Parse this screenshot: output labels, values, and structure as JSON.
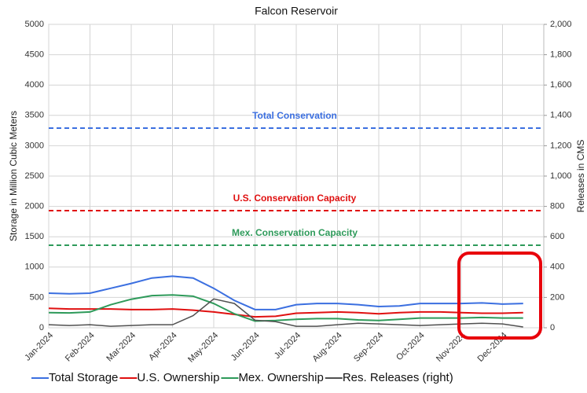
{
  "chart_data": {
    "type": "line",
    "title": "Falcon Reservoir",
    "y_label": "Storage in Million Cubic Meters",
    "y2_label": "Releases in CMS",
    "categories": [
      "Jan-2024",
      null,
      "Feb-2024",
      null,
      "Mar-2024",
      null,
      "Apr-2024",
      null,
      "May-2024",
      null,
      "Jun-2024",
      null,
      "Jul-2024",
      null,
      "Aug-2024",
      null,
      "Sep-2024",
      null,
      "Oct-2024",
      null,
      "Nov-2024",
      null,
      "Dec-2024",
      null
    ],
    "ylim": [
      0,
      5000
    ],
    "yticks": [
      0,
      500,
      1000,
      1500,
      2000,
      2500,
      3000,
      3500,
      4000,
      4500,
      5000
    ],
    "y2lim": [
      0,
      2000
    ],
    "y2ticks": [
      0,
      200,
      400,
      600,
      800,
      {
        "value": 1000,
        "label": "1,000"
      },
      {
        "value": 1200,
        "label": "1,200"
      },
      {
        "value": 1400,
        "label": "1,400"
      },
      {
        "value": 1600,
        "label": "1,600"
      },
      {
        "value": 1800,
        "label": "1,800"
      },
      {
        "value": 2000,
        "label": "2,000"
      }
    ],
    "grid": true,
    "legend": "bottom",
    "reference_lines": [
      {
        "label": "Total Conservation",
        "value": 3290,
        "color": "#3b6fe0"
      },
      {
        "label": "U.S. Conservation Capacity",
        "value": 1930,
        "color": "#e01010"
      },
      {
        "label": "Mex. Conservation Capacity",
        "value": 1360,
        "color": "#2e9a5a"
      }
    ],
    "series": [
      {
        "name": "Total Storage",
        "color": "#3b6fe0",
        "values": [
          570,
          560,
          570,
          650,
          730,
          820,
          850,
          820,
          650,
          450,
          300,
          300,
          380,
          400,
          400,
          380,
          350,
          360,
          400,
          400,
          400,
          410,
          390,
          400
        ]
      },
      {
        "name": "U.S. Ownership",
        "color": "#e01010",
        "values": [
          320,
          310,
          310,
          310,
          300,
          300,
          310,
          290,
          260,
          220,
          180,
          190,
          240,
          250,
          260,
          250,
          230,
          250,
          260,
          260,
          250,
          240,
          240,
          250
        ]
      },
      {
        "name": "Mex. Ownership",
        "color": "#2e9a5a",
        "values": [
          250,
          245,
          260,
          380,
          470,
          530,
          540,
          520,
          400,
          230,
          110,
          120,
          140,
          150,
          150,
          130,
          120,
          140,
          160,
          160,
          160,
          170,
          160,
          160
        ]
      },
      {
        "name": "Res. Releases (right)",
        "color": "#505050",
        "axis": "y2",
        "values": [
          20,
          15,
          20,
          10,
          15,
          20,
          20,
          80,
          190,
          160,
          50,
          40,
          10,
          10,
          20,
          30,
          25,
          20,
          15,
          20,
          25,
          30,
          25,
          5
        ]
      }
    ]
  }
}
